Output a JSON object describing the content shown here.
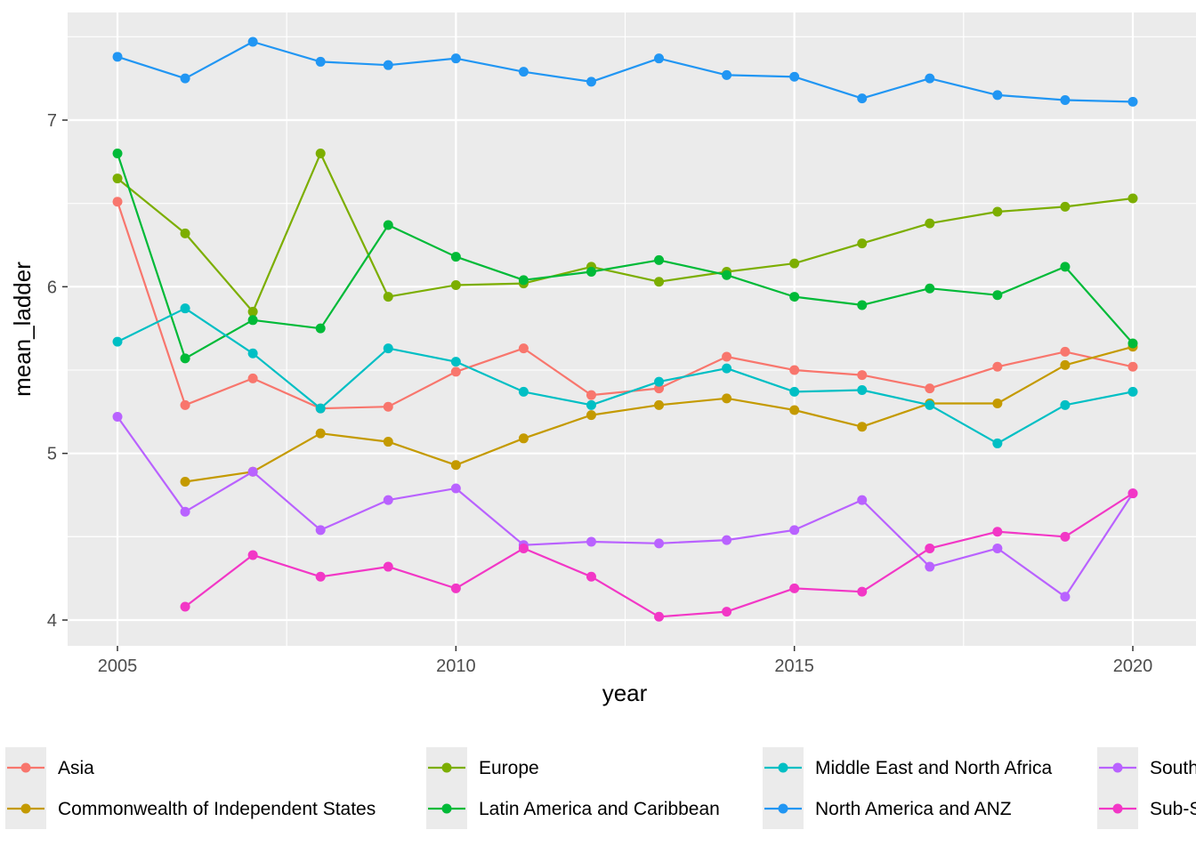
{
  "chart_data": {
    "type": "line",
    "title": "",
    "xlabel": "year",
    "ylabel": "mean_ladder",
    "x": [
      2005,
      2006,
      2007,
      2008,
      2009,
      2010,
      2011,
      2012,
      2013,
      2014,
      2015,
      2016,
      2017,
      2018,
      2019,
      2020
    ],
    "xlim": [
      2004.25,
      2020.25
    ],
    "ylim": [
      3.85,
      7.65
    ],
    "x_ticks": [
      2005,
      2010,
      2015,
      2020
    ],
    "x_tick_labels": [
      "2005",
      "2010",
      "2015",
      "2020"
    ],
    "y_ticks": [
      4,
      5,
      6,
      7
    ],
    "y_tick_labels": [
      "4",
      "5",
      "6",
      "7"
    ],
    "grid": true,
    "legend_position": "bottom",
    "series": [
      {
        "name": "Asia",
        "color": "#F8766D",
        "values": [
          6.51,
          5.29,
          5.45,
          5.27,
          5.28,
          5.49,
          5.63,
          5.35,
          5.39,
          5.58,
          5.5,
          5.47,
          5.39,
          5.52,
          5.61,
          5.52
        ]
      },
      {
        "name": "Commonwealth of Independent States",
        "color": "#C49A00",
        "values": [
          null,
          4.83,
          4.89,
          5.12,
          5.07,
          4.93,
          5.09,
          5.23,
          5.29,
          5.33,
          5.26,
          5.16,
          5.3,
          5.3,
          5.53,
          5.64
        ]
      },
      {
        "name": "Europe",
        "color": "#7CAE00",
        "values": [
          6.65,
          6.32,
          5.85,
          6.8,
          5.94,
          6.01,
          6.02,
          6.12,
          6.03,
          6.09,
          6.14,
          6.26,
          6.38,
          6.45,
          6.48,
          6.53
        ]
      },
      {
        "name": "Latin America and Caribbean",
        "color": "#00BA38",
        "values": [
          6.8,
          5.57,
          5.8,
          5.75,
          6.37,
          6.18,
          6.04,
          6.09,
          6.16,
          6.07,
          5.94,
          5.89,
          5.99,
          5.95,
          6.12,
          5.66
        ]
      },
      {
        "name": "Middle East and North Africa",
        "color": "#00BFC4",
        "values": [
          5.67,
          5.87,
          5.6,
          5.27,
          5.63,
          5.55,
          5.37,
          5.29,
          5.43,
          5.51,
          5.37,
          5.38,
          5.29,
          5.06,
          5.29,
          5.37
        ]
      },
      {
        "name": "North America and ANZ",
        "color": "#2196F3",
        "values": [
          7.38,
          7.25,
          7.47,
          7.35,
          7.33,
          7.37,
          7.29,
          7.23,
          7.37,
          7.27,
          7.26,
          7.13,
          7.25,
          7.15,
          7.12,
          7.11
        ]
      },
      {
        "name": "South Asia",
        "color": "#B962FF",
        "values": [
          5.22,
          4.65,
          4.89,
          4.54,
          4.72,
          4.79,
          4.45,
          4.47,
          4.46,
          4.48,
          4.54,
          4.72,
          4.32,
          4.43,
          4.14,
          4.76
        ]
      },
      {
        "name": "Sub-Saharan Africa",
        "color": "#F237C6",
        "values": [
          null,
          4.08,
          4.39,
          4.26,
          4.32,
          4.19,
          4.43,
          4.26,
          4.02,
          4.05,
          4.19,
          4.17,
          4.43,
          4.53,
          4.5,
          4.76
        ]
      }
    ]
  }
}
